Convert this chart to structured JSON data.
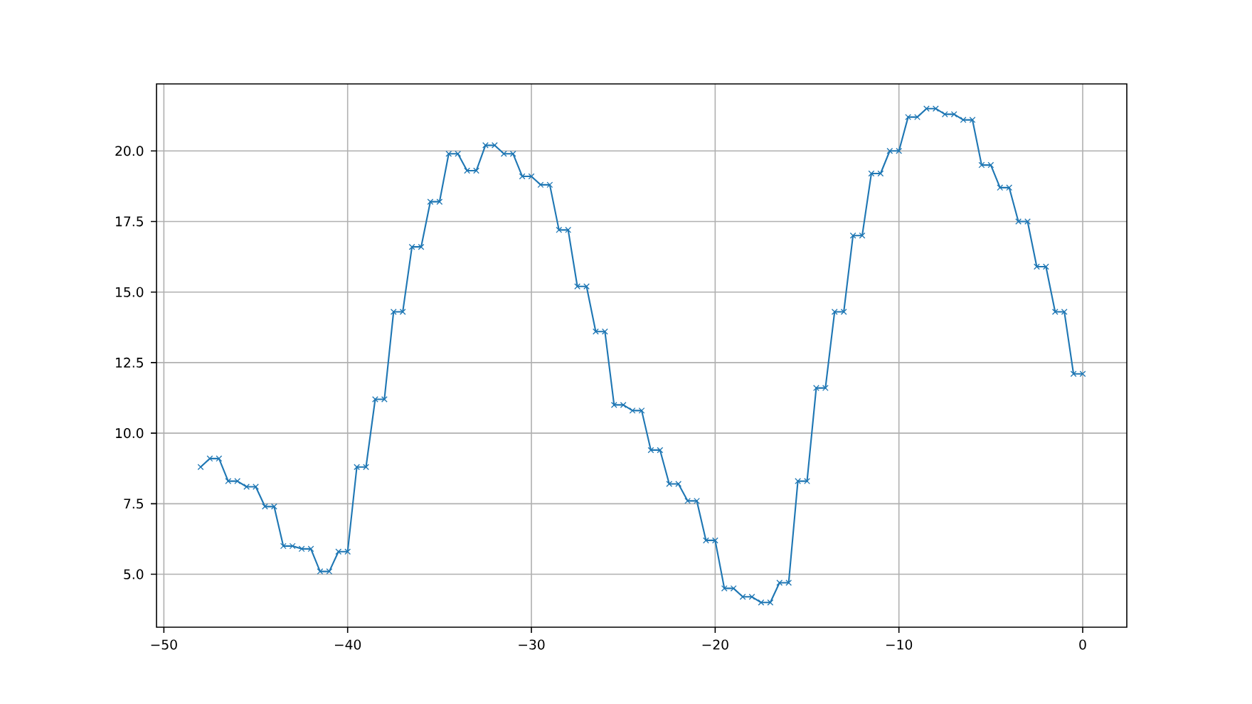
{
  "chart_data": {
    "type": "line",
    "color": "#1f77b4",
    "marker": "cross",
    "line_style": "solid",
    "grid": true,
    "x": [
      -48,
      -47.5,
      -47,
      -46.5,
      -46,
      -45.5,
      -45,
      -44.5,
      -44,
      -43.5,
      -43,
      -42.5,
      -42,
      -41.5,
      -41,
      -40.5,
      -40,
      -39.5,
      -39,
      -38.5,
      -38,
      -37.5,
      -37,
      -36.5,
      -36,
      -35.5,
      -35,
      -34.5,
      -34,
      -33.5,
      -33,
      -32.5,
      -32,
      -31.5,
      -31,
      -30.5,
      -30,
      -29.5,
      -29,
      -28.5,
      -28,
      -27.5,
      -27,
      -26.5,
      -26,
      -25.5,
      -25,
      -24.5,
      -24,
      -23.5,
      -23,
      -22.5,
      -22,
      -21.5,
      -21,
      -20.5,
      -20,
      -19.5,
      -19,
      -18.5,
      -18,
      -17.5,
      -17,
      -16.5,
      -16,
      -15.5,
      -15,
      -14.5,
      -14,
      -13.5,
      -13,
      -12.5,
      -12,
      -11.5,
      -11,
      -10.5,
      -10,
      -9.5,
      -9,
      -8.5,
      -8,
      -7.5,
      -7,
      -6.5,
      -6,
      -5.5,
      -5,
      -4.5,
      -4,
      -3.5,
      -3,
      -2.5,
      -2,
      -1.5,
      -1,
      -0.5,
      0
    ],
    "values": [
      8.8,
      9.1,
      9.1,
      8.3,
      8.3,
      8.1,
      8.1,
      7.4,
      7.4,
      6.0,
      6.0,
      5.9,
      5.9,
      5.1,
      5.1,
      5.8,
      5.8,
      8.8,
      8.8,
      11.2,
      11.2,
      14.3,
      14.3,
      16.6,
      16.6,
      18.2,
      18.2,
      19.9,
      19.9,
      19.3,
      19.3,
      20.2,
      20.2,
      19.9,
      19.9,
      19.1,
      19.1,
      18.8,
      18.8,
      17.2,
      17.2,
      15.2,
      15.2,
      13.6,
      13.6,
      11.0,
      11.0,
      10.8,
      10.8,
      9.4,
      9.4,
      8.2,
      8.2,
      7.6,
      7.6,
      6.2,
      6.2,
      4.5,
      4.5,
      4.2,
      4.2,
      4.0,
      4.0,
      4.7,
      4.7,
      8.3,
      8.3,
      11.6,
      11.6,
      14.3,
      14.3,
      17.0,
      17.0,
      19.2,
      19.2,
      20.0,
      20.0,
      21.2,
      21.2,
      21.5,
      21.5,
      21.3,
      21.3,
      21.1,
      21.1,
      19.5,
      19.5,
      18.7,
      18.7,
      17.5,
      17.5,
      15.9,
      15.9,
      14.3,
      14.3,
      12.1,
      12.1
    ],
    "xlim": [
      -50.4,
      2.4
    ],
    "ylim": [
      3.125,
      22.375
    ],
    "xticks": [
      {
        "value": -50,
        "label": "−50"
      },
      {
        "value": -40,
        "label": "−40"
      },
      {
        "value": -30,
        "label": "−30"
      },
      {
        "value": -20,
        "label": "−20"
      },
      {
        "value": -10,
        "label": "−10"
      },
      0
    ],
    "yticks": [
      {
        "value": 5,
        "label": "5.0"
      },
      {
        "value": 7.5,
        "label": "7.5"
      },
      {
        "value": 10,
        "label": "10.0"
      },
      {
        "value": 12.5,
        "label": "12.5"
      },
      {
        "value": 15,
        "label": "15.0"
      },
      {
        "value": 17.5,
        "label": "17.5"
      },
      {
        "value": 20,
        "label": "20.0"
      }
    ]
  }
}
